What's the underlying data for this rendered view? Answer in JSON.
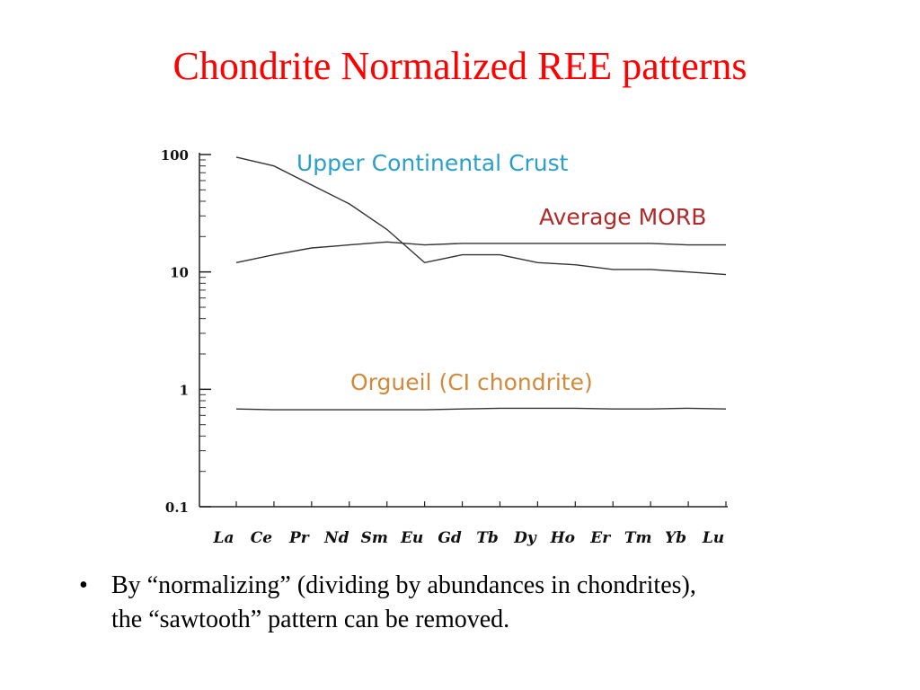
{
  "slide": {
    "title": "Chondrite Normalized REE patterns",
    "bullets": [
      {
        "marker": "•",
        "line1": "By “normalizing” (dividing by abundances in chondrites),",
        "line2": "the “sawtooth” pattern can be removed."
      }
    ]
  },
  "chart_data": {
    "type": "line",
    "title": "",
    "xlabel": "",
    "ylabel": "",
    "yscale": "log",
    "ylim": [
      0.1,
      100
    ],
    "yticks": [
      {
        "value": 100,
        "label": "100"
      },
      {
        "value": 10,
        "label": "10"
      },
      {
        "value": 1,
        "label": "1"
      },
      {
        "value": 0.1,
        "label": "0.1"
      }
    ],
    "categories": [
      "La",
      "Ce",
      "Pr",
      "Nd",
      "Sm",
      "Eu",
      "Gd",
      "Tb",
      "Dy",
      "Ho",
      "Er",
      "Tm",
      "Yb",
      "Lu"
    ],
    "grid": false,
    "series": [
      {
        "name": "Upper Continental Crust",
        "color": "#2aa0c8",
        "values": [
          95,
          80,
          55,
          38,
          23,
          12,
          14,
          14,
          12,
          11.5,
          10.5,
          10.5,
          10,
          9.5
        ]
      },
      {
        "name": "Average MORB",
        "color": "#b02a2a",
        "values": [
          12,
          14,
          16,
          17,
          18,
          17,
          17.5,
          17.5,
          17.5,
          17.5,
          17.5,
          17.5,
          17,
          17
        ]
      },
      {
        "name": "Orgueil (CI chondrite)",
        "color": "#d08a3a",
        "values": [
          0.68,
          0.67,
          0.67,
          0.67,
          0.67,
          0.67,
          0.68,
          0.69,
          0.69,
          0.69,
          0.68,
          0.68,
          0.69,
          0.68
        ]
      }
    ]
  }
}
